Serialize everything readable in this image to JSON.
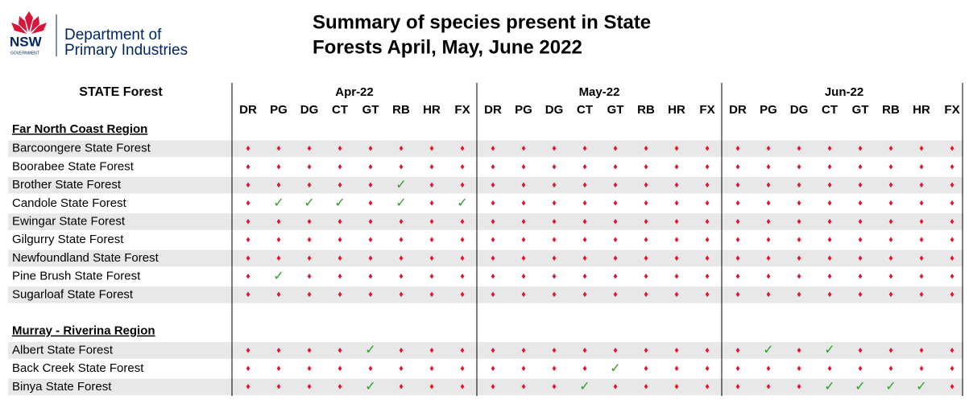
{
  "logo": {
    "mark": "NSW",
    "sub": "GOVERNMENT",
    "org": [
      "Department of",
      "Primary Industries"
    ]
  },
  "title": [
    "Summary of species present in State",
    "Forests April, May, June 2022"
  ],
  "table": {
    "header": "STATE Forest",
    "months": [
      "Apr-22",
      "May-22",
      "Jun-22"
    ],
    "codes": [
      "DR",
      "PG",
      "DG",
      "CT",
      "GT",
      "RB",
      "HR",
      "FX"
    ],
    "sections": [
      {
        "region": "Far North Coast Region",
        "rows": [
          {
            "name": "Barcoongere State Forest",
            "cells": "♦♦♦♦♦♦♦♦♦♦♦♦♦♦♦♦♦♦♦♦♦♦♦♦"
          },
          {
            "name": "Boorabee State Forest",
            "cells": "♦♦♦♦♦♦♦♦♦♦♦♦♦♦♦♦♦♦♦♦♦♦♦♦"
          },
          {
            "name": "Brother State Forest",
            "cells": "♦♦♦♦♦✓♦♦♦♦♦♦♦♦♦♦♦♦♦♦♦♦♦♦"
          },
          {
            "name": "Candole State Forest",
            "cells": "♦✓✓✓♦✓♦✓♦♦♦♦♦♦♦♦♦♦♦♦♦♦♦♦"
          },
          {
            "name": "Ewingar State Forest",
            "cells": "♦♦♦♦♦♦♦♦♦♦♦♦♦♦♦♦♦♦♦♦♦♦♦♦"
          },
          {
            "name": "Gilgurry State Forest",
            "cells": "♦♦♦♦♦♦♦♦♦♦♦♦♦♦♦♦♦♦♦♦♦♦♦♦"
          },
          {
            "name": "Newfoundland State Forest",
            "cells": "♦♦♦♦♦♦♦♦♦♦♦♦♦♦♦♦♦♦♦♦♦♦♦♦"
          },
          {
            "name": "Pine Brush State Forest",
            "cells": "♦✓♦♦♦♦♦♦♦♦♦♦♦♦♦♦♦♦♦♦♦♦♦♦"
          },
          {
            "name": "Sugarloaf State Forest",
            "cells": "♦♦♦♦♦♦♦♦♦♦♦♦♦♦♦♦♦♦♦♦♦♦♦♦"
          }
        ]
      },
      {
        "region": "Murray - Riverina Region",
        "rows": [
          {
            "name": "Albert State Forest",
            "cells": "♦♦♦♦✓♦♦♦♦♦♦♦♦♦♦♦♦✓♦✓♦♦♦♦"
          },
          {
            "name": "Back Creek State Forest",
            "cells": "♦♦♦♦♦♦♦♦♦♦♦♦✓♦♦♦♦♦♦♦♦♦♦♦"
          },
          {
            "name": "Binya State Forest",
            "cells": "♦♦♦♦✓♦♦♦♦♦♦✓♦♦♦♦♦♦♦✓✓✓✓♦"
          }
        ]
      }
    ]
  }
}
